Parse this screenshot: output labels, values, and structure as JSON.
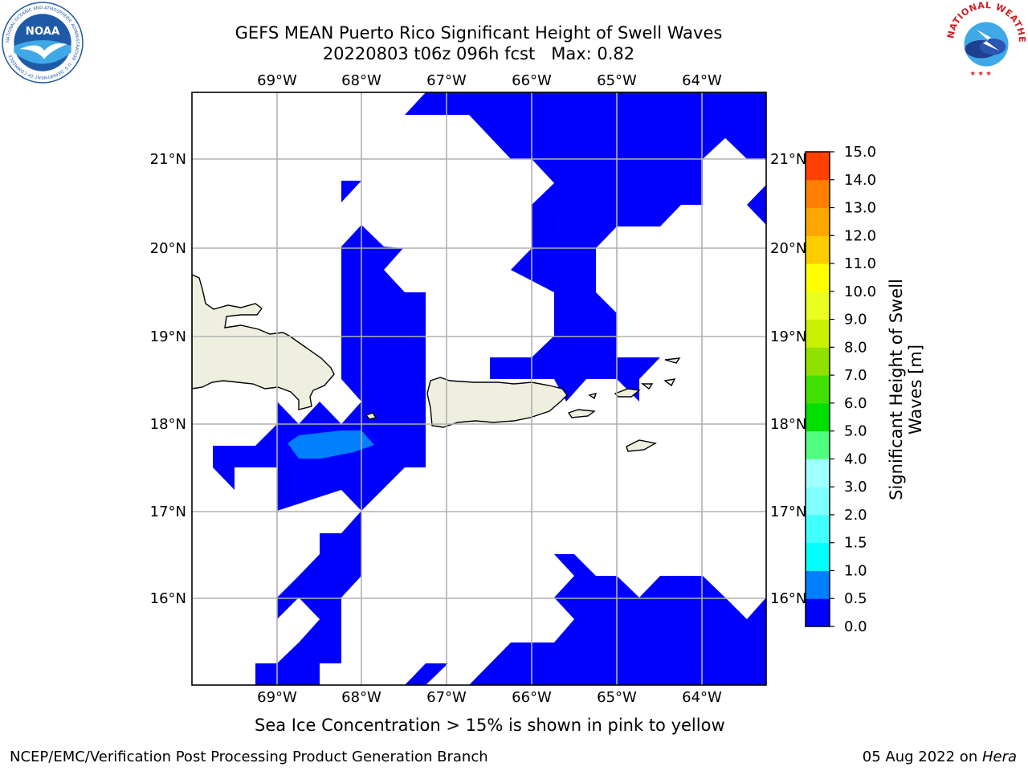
{
  "header": {
    "title_line1": "GEFS MEAN Puerto Rico Significant Height of Swell Waves",
    "title_line2": "20220803 t06z 096h fcst   Max: 0.82"
  },
  "logos": {
    "left": {
      "text": "NOAA",
      "ring_text": "NATIONAL OCEANIC AND ATMOSPHERIC ADMINISTRATION · U.S. DEPARTMENT OF COMMERCE",
      "color": "#1f5aa6"
    },
    "right": {
      "ring_text": "NATIONAL WEATHER SERVICE",
      "color": "#d21f26"
    }
  },
  "map": {
    "lon_range": [
      -70.0,
      -63.27
    ],
    "lat_range": [
      15.0,
      21.75
    ],
    "lon_ticks": [
      "69°W",
      "68°W",
      "67°W",
      "66°W",
      "65°W",
      "64°W"
    ],
    "lat_ticks": [
      "16°N",
      "17°N",
      "18°N",
      "19°N",
      "20°N",
      "21°N"
    ],
    "grid": true,
    "land_color": "#efefe0",
    "swell_colors": {
      "0.0-0.5": "#0000ff",
      "0.5-1.0": "#0080ff"
    }
  },
  "colorbar": {
    "label_line1": "Significant Height of Swell",
    "label_line2": "Waves [m]",
    "ticks": [
      "0.0",
      "0.5",
      "1.0",
      "1.5",
      "2.0",
      "3.0",
      "4.0",
      "5.0",
      "6.0",
      "7.0",
      "8.0",
      "9.0",
      "10.0",
      "11.0",
      "12.0",
      "13.0",
      "14.0",
      "15.0"
    ],
    "colors": [
      "#0000ff",
      "#0080ff",
      "#00ffff",
      "#40ffff",
      "#80ffff",
      "#a0ffff",
      "#50ff80",
      "#00e000",
      "#40e000",
      "#90e000",
      "#c8f000",
      "#e8ff20",
      "#ffff00",
      "#ffcc00",
      "#ffa500",
      "#ff8000",
      "#ff4000",
      "#ff2000",
      "#ff0000"
    ]
  },
  "captions": {
    "sea_ice": "Sea Ice Concentration > 15% is shown in pink to yellow",
    "footer_left": "NCEP/EMC/Verification Post Processing Product Generation Branch",
    "footer_date": "05 Aug 2022 on ",
    "footer_host": "Hera"
  }
}
